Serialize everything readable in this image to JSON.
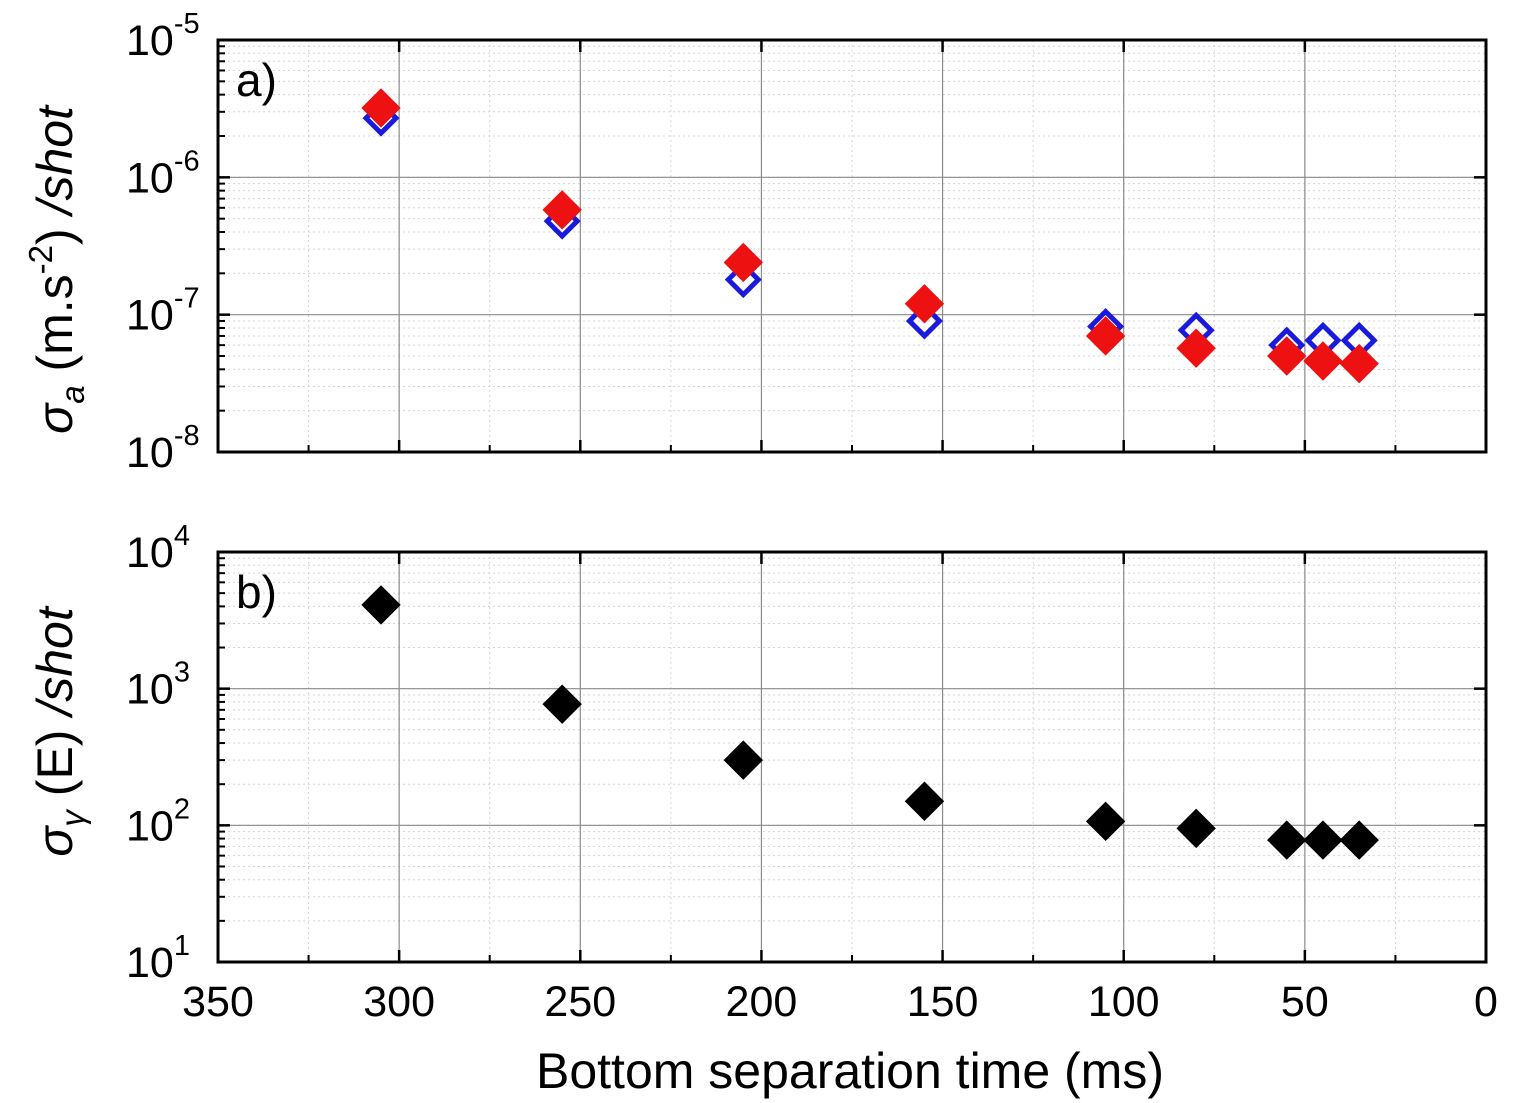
{
  "chart_data": [
    {
      "type": "scatter",
      "panel_label": "a)",
      "yscale": "log",
      "ylim": [
        1e-08,
        1e-05
      ],
      "xlim": [
        350,
        0
      ],
      "y_ticks": [
        {
          "base": "10",
          "exp": "-8",
          "value": 1e-08
        },
        {
          "base": "10",
          "exp": "-7",
          "value": 1e-07
        },
        {
          "base": "10",
          "exp": "-6",
          "value": 1e-06
        },
        {
          "base": "10",
          "exp": "-5",
          "value": 1e-05
        }
      ],
      "ylabel": {
        "sigma": "σ",
        "sub": "a",
        "unit_open": " (m.s",
        "unit_exp": "-2",
        "unit_close": ") ",
        "per": "/shot"
      },
      "grid": true,
      "series": [
        {
          "name": "open blue diamonds",
          "marker": "diamond-open",
          "color": "#1a1adc",
          "x": [
            305,
            255,
            205,
            155,
            105,
            80,
            55,
            45,
            35
          ],
          "y": [
            2.7e-06,
            4.8e-07,
            1.8e-07,
            9e-08,
            8.2e-08,
            7.7e-08,
            6e-08,
            6.5e-08,
            6.5e-08
          ]
        },
        {
          "name": "filled red diamonds",
          "marker": "diamond-filled",
          "color": "#ee1111",
          "x": [
            305,
            255,
            205,
            155,
            105,
            80,
            55,
            45,
            35
          ],
          "y": [
            3.2e-06,
            5.8e-07,
            2.4e-07,
            1.2e-07,
            7e-08,
            5.7e-08,
            5e-08,
            4.6e-08,
            4.4e-08
          ]
        }
      ]
    },
    {
      "type": "scatter",
      "panel_label": "b)",
      "yscale": "log",
      "ylim": [
        10,
        10000
      ],
      "xlim": [
        350,
        0
      ],
      "y_ticks": [
        {
          "base": "10",
          "exp": "1",
          "value": 10
        },
        {
          "base": "10",
          "exp": "2",
          "value": 100
        },
        {
          "base": "10",
          "exp": "3",
          "value": 1000
        },
        {
          "base": "10",
          "exp": "4",
          "value": 10000
        }
      ],
      "ylabel": {
        "sigma": "σ",
        "sub": "γ",
        "unit": " (E) ",
        "per": "/shot"
      },
      "grid": true,
      "series": [
        {
          "name": "filled black diamonds",
          "marker": "diamond-filled",
          "color": "#000000",
          "x": [
            305,
            255,
            205,
            155,
            105,
            80,
            55,
            45,
            35
          ],
          "y": [
            4100,
            770,
            300,
            150,
            107,
            95,
            78,
            78,
            78
          ]
        }
      ]
    }
  ],
  "x_axis": {
    "title": "Bottom separation time (ms)",
    "tick_labels": [
      "350",
      "300",
      "250",
      "200",
      "150",
      "100",
      "50",
      "0"
    ],
    "tick_values": [
      350,
      300,
      250,
      200,
      150,
      100,
      50,
      0
    ]
  }
}
